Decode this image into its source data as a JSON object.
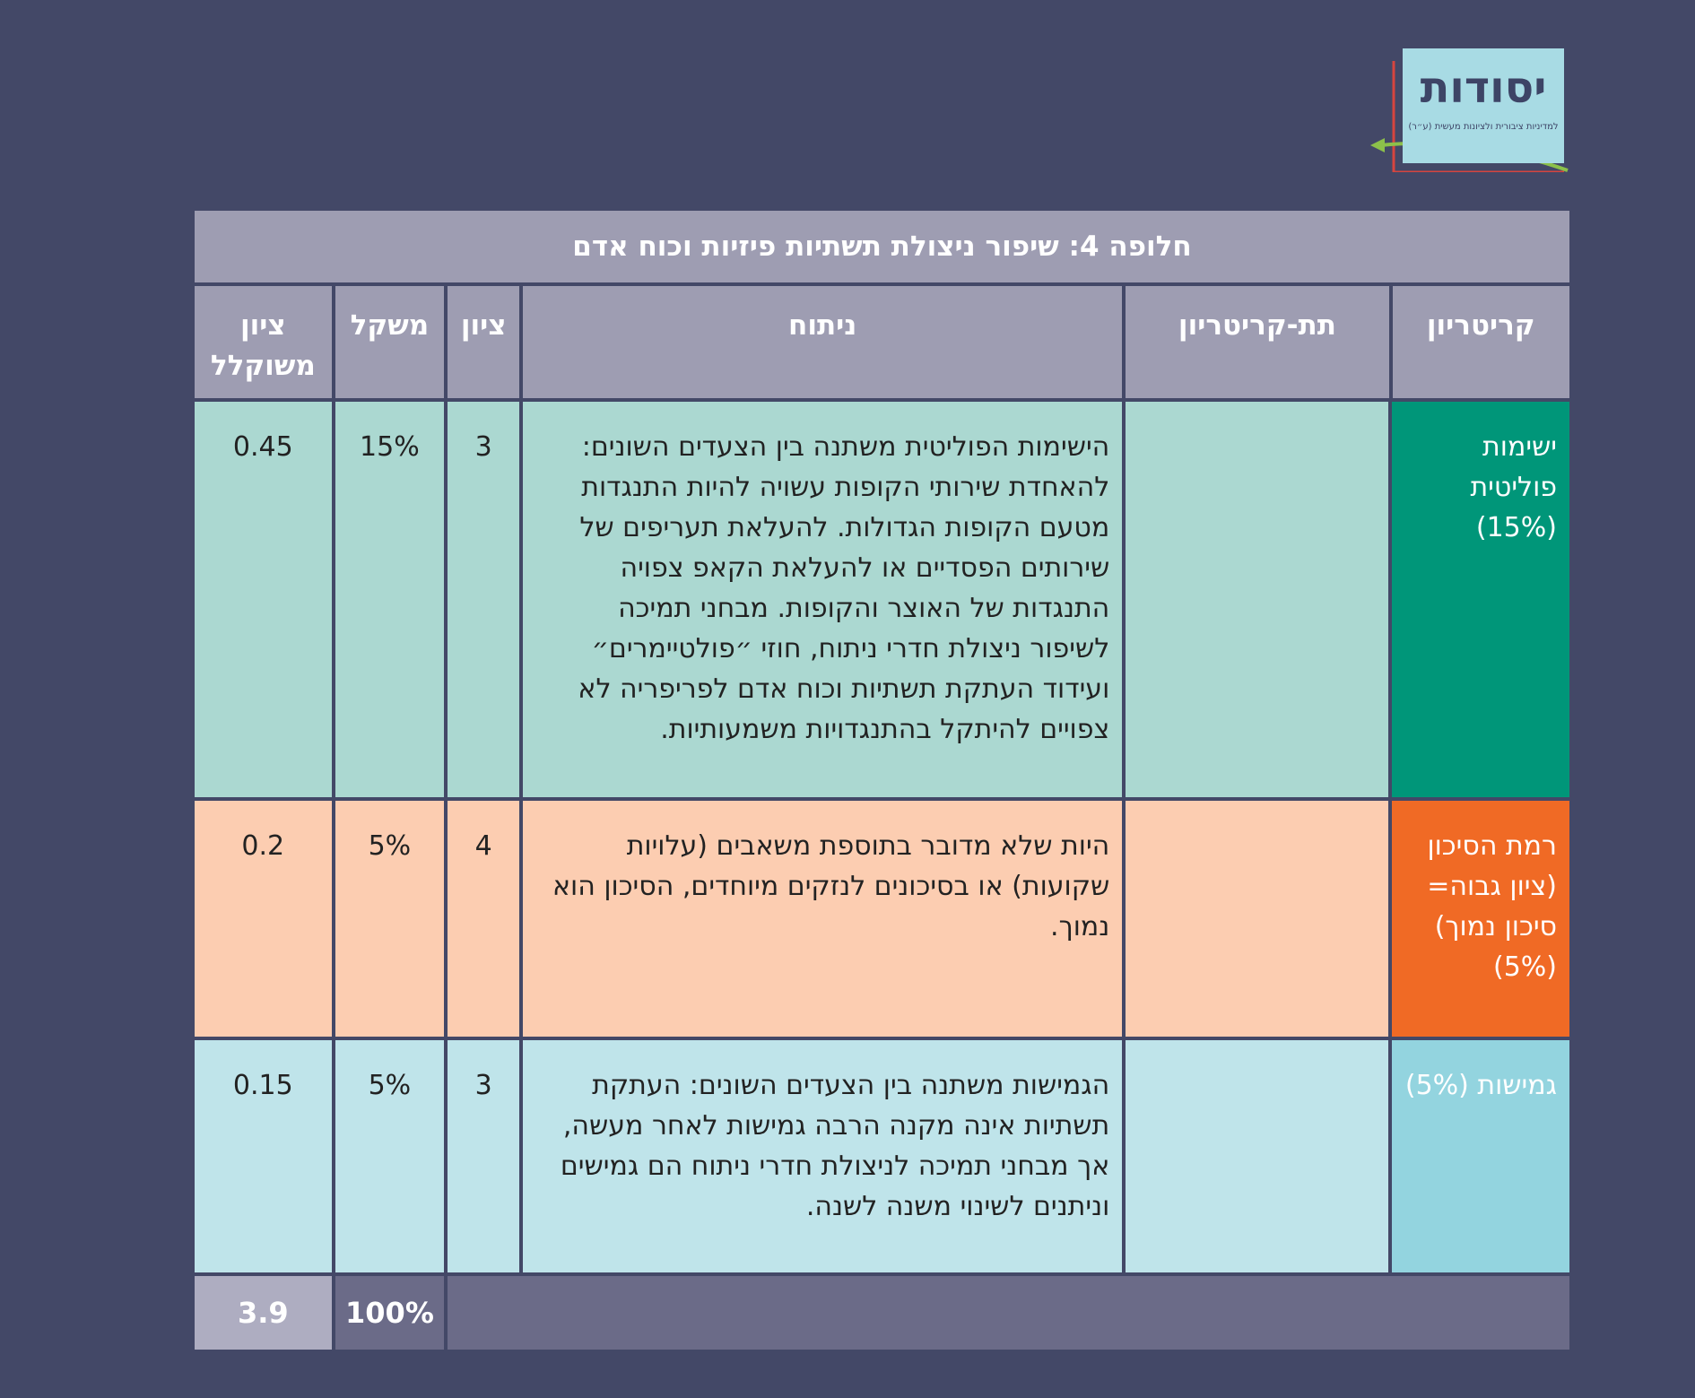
{
  "logo": {
    "name": "יסודות",
    "tagline": "למדיניות ציבורית ולציונות מעשית (ע״ר)"
  },
  "table": {
    "title": "חלופה 4: שיפור ניצולת תשתיות פיזיות וכוח אדם",
    "headers": {
      "criterion": "קריטריון",
      "sub_criterion": "תת-קריטריון",
      "analysis": "ניתוח",
      "score": "ציון",
      "weight": "משקל",
      "weighted_score": "ציון משוקלל"
    },
    "rows": [
      {
        "criterion": "ישימות פוליטית (15%)",
        "sub_criterion": "",
        "analysis": "הישימות הפוליטית משתנה בין הצעדים השונים: להאחדת שירותי הקופות עשויה להיות התנגדות מטעם הקופות הגדולות. להעלאת תעריפים של שירותים הפסדיים או להעלאת הקאפ צפויה התנגדות של האוצר והקופות. מבחני תמיכה לשיפור ניצולת חדרי ניתוח, חוזי ״פולטיימרים״ ועידוד העתקת תשתיות וכוח אדם לפריפריה לא צפויים להיתקל בהתנגדויות משמעותיות.",
        "score": "3",
        "weight": "15%",
        "weighted_score": "0.45"
      },
      {
        "criterion": "רמת הסיכון (ציון גבוה= סיכון נמוך) (5%)",
        "sub_criterion": "",
        "analysis": "היות שלא מדובר בתוספת משאבים (עלויות שקועות) או בסיכונים לנזקים מיוחדים, הסיכון הוא נמוך.",
        "score": "4",
        "weight": "5%",
        "weighted_score": "0.2"
      },
      {
        "criterion": "גמישות (5%)",
        "sub_criterion": "",
        "analysis": "הגמישות משתנה בין הצעדים השונים: העתקת תשתיות אינה מקנה הרבה גמישות לאחר מעשה, אך מבחני תמיכה לניצולת חדרי ניתוח הם גמישים וניתנים לשינוי משנה לשנה.",
        "score": "3",
        "weight": "5%",
        "weighted_score": "0.15"
      }
    ],
    "total": {
      "weight": "100%",
      "weighted_score": "3.9"
    }
  },
  "colors": {
    "background": "#434867",
    "header": "#9e9db2",
    "row1_criterion": "#009679",
    "row1_body": "#abd8d1",
    "row2_criterion": "#f06a25",
    "row2_body": "#fccdb1",
    "row3_criterion": "#93d4df",
    "row3_body": "#bfe4ea",
    "total_bar": "#6b6b88",
    "total_score": "#aeadc1"
  }
}
